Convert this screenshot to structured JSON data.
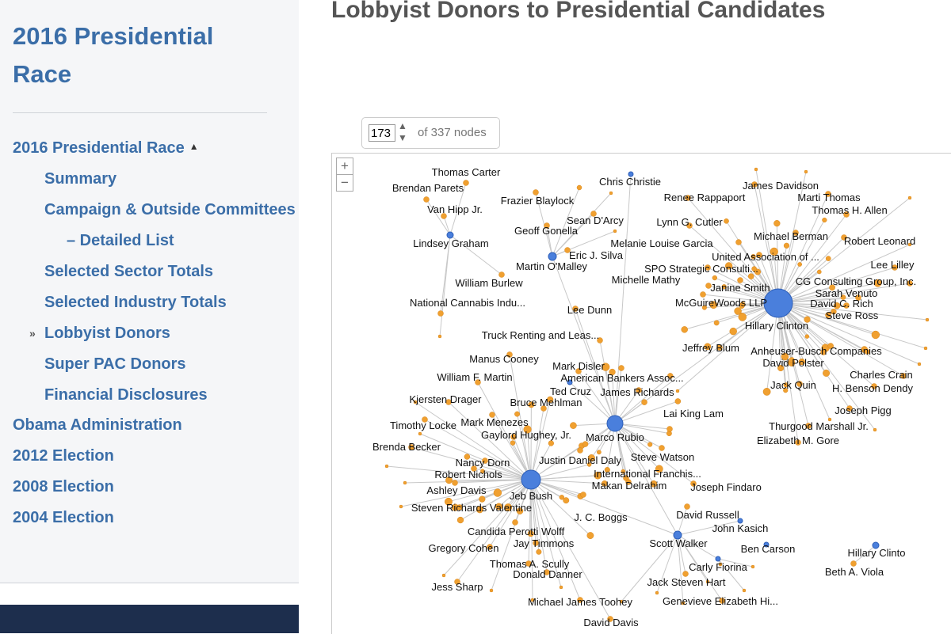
{
  "sidebar": {
    "title": "2016 Presidential Race",
    "nav": [
      {
        "label": "2016 Presidential Race",
        "level": 0,
        "caret": true
      },
      {
        "label": "Summary",
        "level": 1
      },
      {
        "label": "Campaign & Outside Committees",
        "level": 1
      },
      {
        "label": "– Detailed List",
        "level": 2
      },
      {
        "label": "Selected Sector Totals",
        "level": 1
      },
      {
        "label": "Selected Industry Totals",
        "level": 1
      },
      {
        "label": "Lobbyist Donors",
        "level": 1,
        "active": true
      },
      {
        "label": "Super PAC Donors",
        "level": 1
      },
      {
        "label": "Financial Disclosures",
        "level": 1
      },
      {
        "label": "Obama Administration",
        "level": 0
      },
      {
        "label": "2012 Election",
        "level": 0
      },
      {
        "label": "2008 Election",
        "level": 0
      },
      {
        "label": "2004 Election",
        "level": 0
      }
    ]
  },
  "header": {
    "title": "Lobbyist Donors to Presidential Candidates"
  },
  "node_control": {
    "value": "173",
    "suffix": "of 337 nodes"
  },
  "zoom": {
    "plus": "+",
    "minus": "−"
  },
  "colors": {
    "candidate": "#4a7fdc",
    "donor": "#f0a030",
    "link": "#c8c8c8",
    "nav": "#3b6ea8"
  },
  "graph": {
    "candidates": [
      {
        "name": "Hillary Clinton",
        "big": true
      },
      {
        "name": "Marco Rubio",
        "big": false
      },
      {
        "name": "Jeb Bush",
        "big": true
      },
      {
        "name": "Scott Walker",
        "big": false
      },
      {
        "name": "Martin O'Malley",
        "big": false
      },
      {
        "name": "Lindsey Graham",
        "big": false
      },
      {
        "name": "Chris Christie",
        "big": false
      },
      {
        "name": "Ted Cruz",
        "big": false
      },
      {
        "name": "John Kasich",
        "big": false
      },
      {
        "name": "Ben Carson",
        "big": false
      },
      {
        "name": "Carly Fiorina",
        "big": false
      },
      {
        "name": "Hillary Clinto",
        "big": false
      }
    ],
    "donors": [
      {
        "name": "Thomas Carter"
      },
      {
        "name": "Brendan Parets"
      },
      {
        "name": "Van Hipp Jr."
      },
      {
        "name": "Frazier Blaylock"
      },
      {
        "name": "Sean D'Arcy"
      },
      {
        "name": "Geoff Gonella"
      },
      {
        "name": "Eric J. Silva"
      },
      {
        "name": "William Burlew"
      },
      {
        "name": "National Cannabis Indu..."
      },
      {
        "name": "Lee Dunn"
      },
      {
        "name": "Truck Renting and Leas..."
      },
      {
        "name": "Manus Cooney"
      },
      {
        "name": "Mark Disler"
      },
      {
        "name": "William F. Martin"
      },
      {
        "name": "American Bankers Assoc..."
      },
      {
        "name": "James Richards"
      },
      {
        "name": "Kjersten Drager"
      },
      {
        "name": "Bruce Mehlman"
      },
      {
        "name": "Timothy Locke"
      },
      {
        "name": "Mark Menezes"
      },
      {
        "name": "Gaylord Hughey, Jr."
      },
      {
        "name": "Brenda Becker"
      },
      {
        "name": "Nancy Dorn"
      },
      {
        "name": "Justin Daniel Daly"
      },
      {
        "name": "Robert Nichols"
      },
      {
        "name": "Ashley Davis"
      },
      {
        "name": "Steven Richards Valentine"
      },
      {
        "name": "Candida Perotti Wolff"
      },
      {
        "name": "Gregory Cohen"
      },
      {
        "name": "Jay Timmons"
      },
      {
        "name": "Thomas A. Scully"
      },
      {
        "name": "Donald Danner"
      },
      {
        "name": "Jess Sharp"
      },
      {
        "name": "Michael James Toohey"
      },
      {
        "name": "David Davis"
      },
      {
        "name": "J. C. Boggs"
      },
      {
        "name": "Steve Watson"
      },
      {
        "name": "International Franchis..."
      },
      {
        "name": "Makan Delrahim"
      },
      {
        "name": "Joseph Findaro"
      },
      {
        "name": "David Russell"
      },
      {
        "name": "Jack Steven Hart"
      },
      {
        "name": "Genevieve Elizabeth Hi..."
      },
      {
        "name": "Beth A. Viola"
      },
      {
        "name": "Lai King Lam"
      },
      {
        "name": "Renee Rappaport"
      },
      {
        "name": "James Davidson"
      },
      {
        "name": "Marti Thomas"
      },
      {
        "name": "Thomas H. Allen"
      },
      {
        "name": "Lynn G. Cutler"
      },
      {
        "name": "Melanie Louise Garcia"
      },
      {
        "name": "Michael Berman"
      },
      {
        "name": "Robert Leonard"
      },
      {
        "name": "United Association of ..."
      },
      {
        "name": "Lee Lilley"
      },
      {
        "name": "SPO Strategic Consulti..."
      },
      {
        "name": "Michelle Mathy"
      },
      {
        "name": "CG Consulting Group, Inc."
      },
      {
        "name": "Janine Smith"
      },
      {
        "name": "Sarah Venuto"
      },
      {
        "name": "McGuireWoods LLP"
      },
      {
        "name": "David C. Rich"
      },
      {
        "name": "Steve Ross"
      },
      {
        "name": "Jeffrey Blum"
      },
      {
        "name": "Anheuser-Busch Companies"
      },
      {
        "name": "David Polster"
      },
      {
        "name": "Charles Crain"
      },
      {
        "name": "Jack Quin"
      },
      {
        "name": "H. Benson Dendy"
      },
      {
        "name": "Joseph Pigg"
      },
      {
        "name": "Thurgood Marshall Jr."
      },
      {
        "name": "Elizabeth M. Gore"
      }
    ]
  }
}
